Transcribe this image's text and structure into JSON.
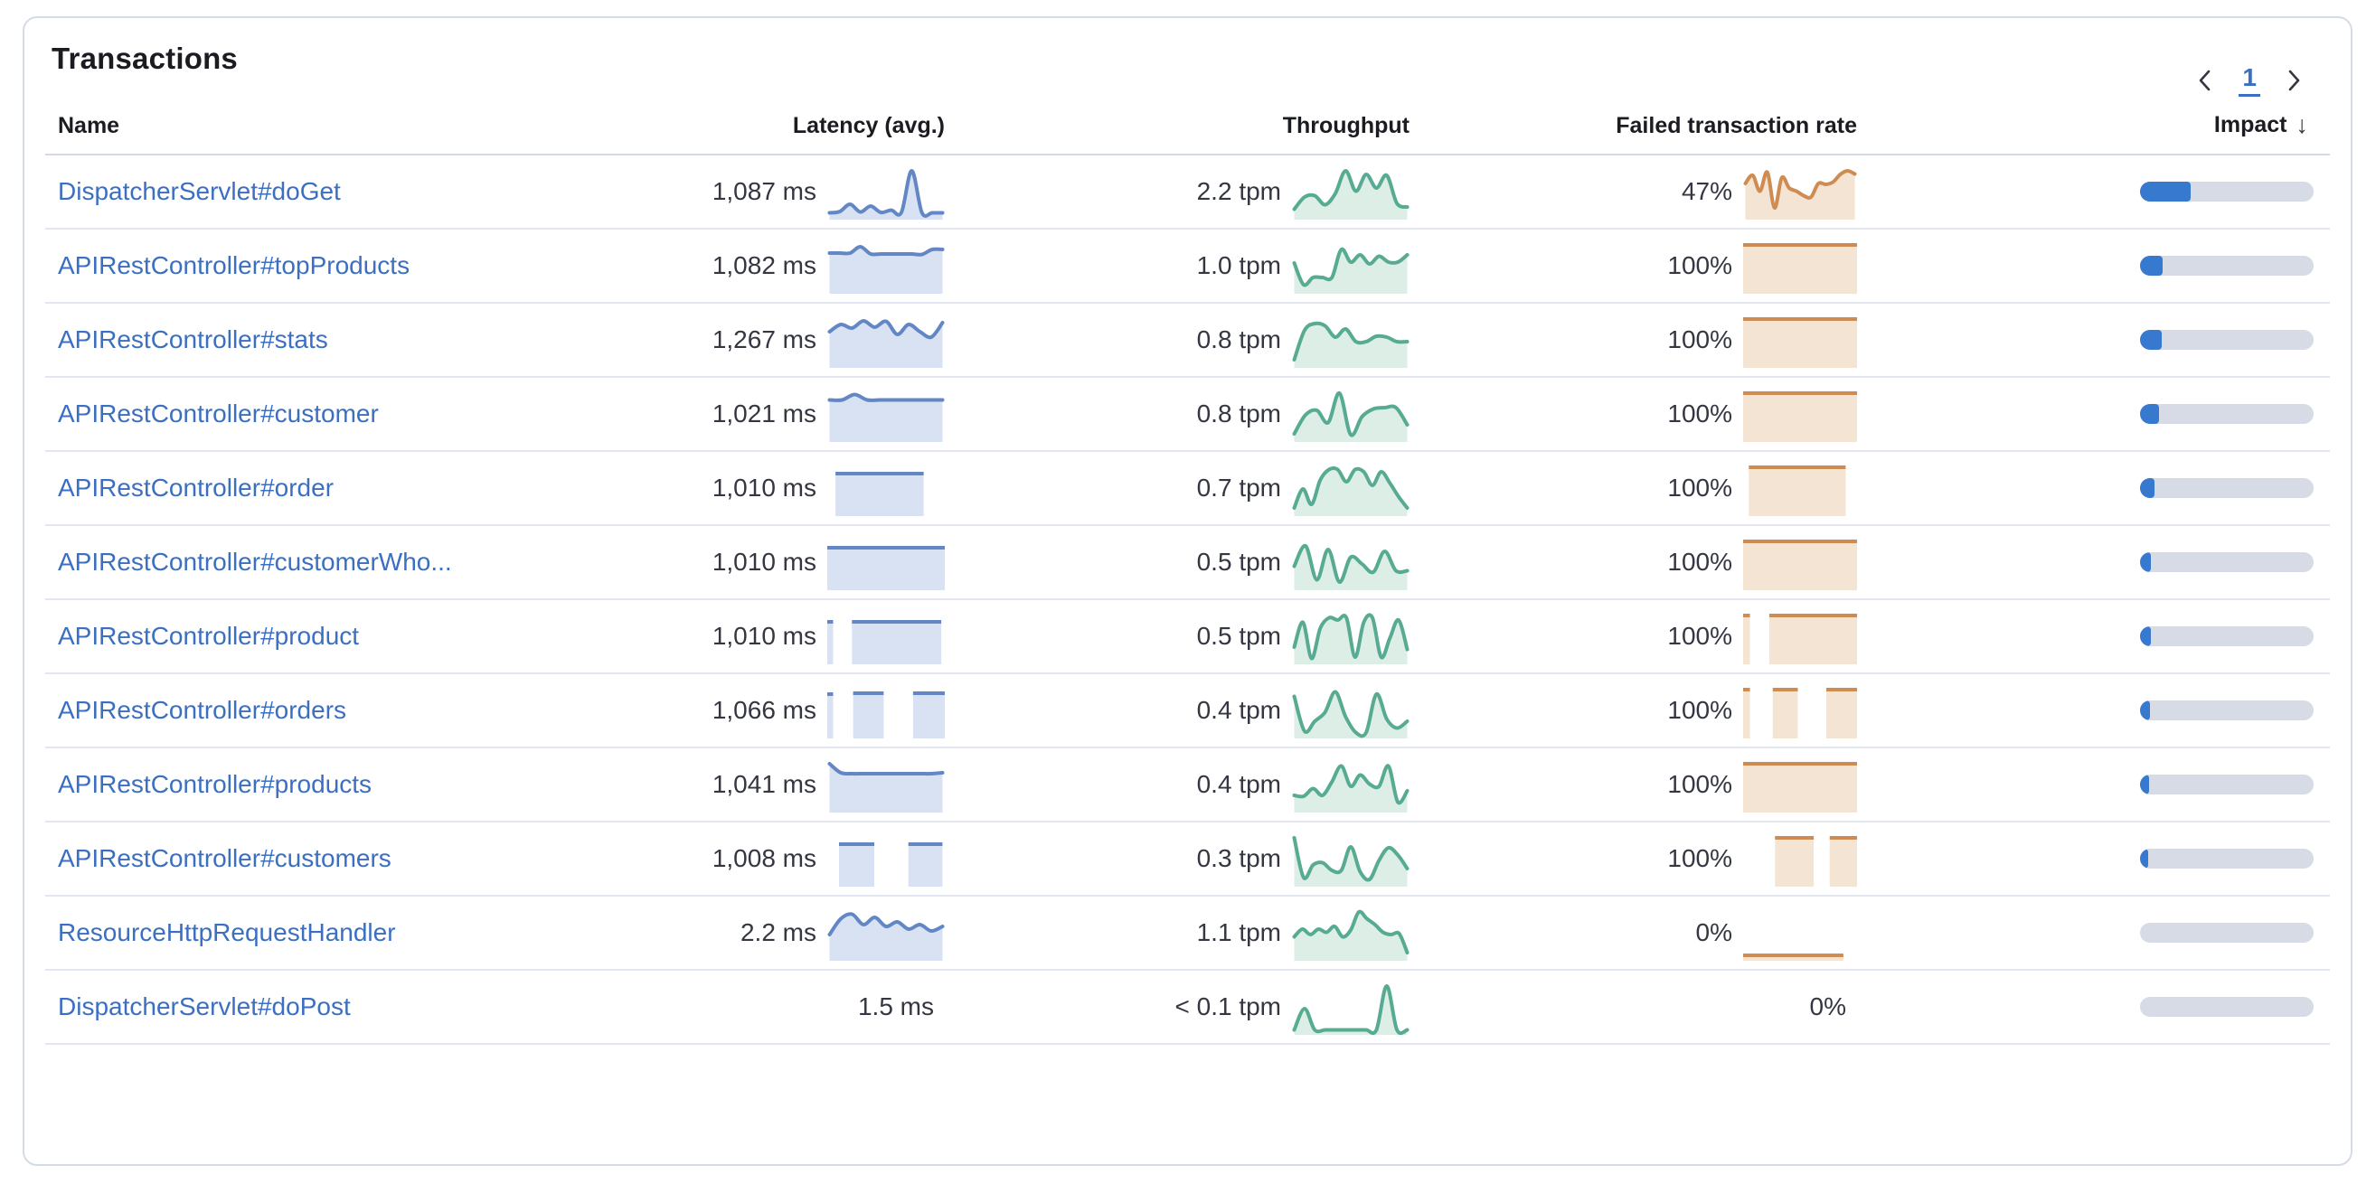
{
  "card": {
    "title": "Transactions"
  },
  "table": {
    "columns": [
      "Name",
      "Latency (avg.)",
      "Throughput",
      "Failed transaction rate",
      "Impact"
    ],
    "sort": {
      "column": "Impact",
      "direction": "desc",
      "indicator": "↓"
    }
  },
  "colors": {
    "latency_line": "#6287c4",
    "latency_fill": "#d9e2f2",
    "throughput_line": "#57ab92",
    "throughput_fill": "#dceee6",
    "failed_line": "#ce8c52",
    "failed_fill": "#f4e4d3",
    "impact_fill": "#3879d0",
    "impact_track": "#d6dbe5",
    "link": "#3b6fc1"
  },
  "rows": [
    {
      "name": "DispatcherServlet#doGet",
      "latency": "1,087 ms",
      "latency_spark": {
        "kind": "line",
        "points": [
          0.07,
          0.1,
          0.26,
          0.09,
          0.22,
          0.08,
          0.13,
          0.08,
          1.0,
          0.07,
          0.07,
          0.07
        ]
      },
      "throughput": "2.2 tpm",
      "throughput_spark": {
        "kind": "line",
        "points": [
          0.15,
          0.42,
          0.45,
          0.25,
          0.5,
          1.0,
          0.55,
          0.92,
          0.62,
          0.9,
          0.28,
          0.2
        ]
      },
      "failed": "47%",
      "failed_spark": {
        "kind": "line",
        "points": [
          0.72,
          0.9,
          0.55,
          0.97,
          0.18,
          0.85,
          0.62,
          0.55,
          0.45,
          0.42,
          0.72,
          0.7,
          0.75,
          0.92,
          1.0,
          0.93
        ]
      },
      "impact": 0.29
    },
    {
      "name": "APIRestController#topProducts",
      "latency": "1,082 ms",
      "latency_spark": {
        "kind": "line",
        "points": [
          0.82,
          0.82,
          0.82,
          0.96,
          0.8,
          0.8,
          0.8,
          0.8,
          0.8,
          0.79,
          0.9,
          0.9
        ]
      },
      "throughput": "1.0 tpm",
      "throughput_spark": {
        "kind": "line",
        "points": [
          0.6,
          0.12,
          0.28,
          0.28,
          0.28,
          0.9,
          0.62,
          0.78,
          0.58,
          0.75,
          0.62,
          0.62,
          0.78
        ]
      },
      "failed": "100%",
      "failed_spark": {
        "kind": "blocks",
        "segments": [
          [
            0,
            1,
            1
          ]
        ]
      },
      "impact": 0.13
    },
    {
      "name": "APIRestController#stats",
      "latency": "1,267 ms",
      "latency_spark": {
        "kind": "line",
        "points": [
          0.72,
          0.88,
          0.8,
          0.96,
          0.82,
          0.95,
          0.66,
          0.88,
          0.72,
          0.6,
          0.92
        ]
      },
      "throughput": "0.8 tpm",
      "throughput_spark": {
        "kind": "line",
        "points": [
          0.1,
          0.75,
          0.9,
          0.85,
          0.6,
          0.78,
          0.5,
          0.5,
          0.62,
          0.6,
          0.5,
          0.5
        ]
      },
      "failed": "100%",
      "failed_spark": {
        "kind": "blocks",
        "segments": [
          [
            0,
            1,
            1
          ]
        ]
      },
      "impact": 0.125
    },
    {
      "name": "APIRestController#customer",
      "latency": "1,021 ms",
      "latency_spark": {
        "kind": "line",
        "points": [
          0.85,
          0.85,
          0.97,
          0.85,
          0.85,
          0.85,
          0.85,
          0.85,
          0.85,
          0.85
        ]
      },
      "throughput": "0.8 tpm",
      "throughput_spark": {
        "kind": "line",
        "points": [
          0.1,
          0.52,
          0.62,
          0.35,
          1.0,
          0.08,
          0.48,
          0.65,
          0.68,
          0.68,
          0.3
        ]
      },
      "failed": "100%",
      "failed_spark": {
        "kind": "blocks",
        "segments": [
          [
            0,
            1,
            1
          ]
        ]
      },
      "impact": 0.11
    },
    {
      "name": "APIRestController#order",
      "latency": "1,010 ms",
      "latency_spark": {
        "kind": "blocks",
        "segments": [
          [
            0.07,
            0.82,
            0.86
          ]
        ]
      },
      "throughput": "0.7 tpm",
      "throughput_spark": {
        "kind": "line",
        "points": [
          0.1,
          0.52,
          0.18,
          0.72,
          0.95,
          0.95,
          0.68,
          0.95,
          0.9,
          0.6,
          0.9,
          0.65,
          0.35,
          0.1
        ]
      },
      "failed": "100%",
      "failed_spark": {
        "kind": "blocks",
        "segments": [
          [
            0.05,
            0.9,
            1
          ]
        ]
      },
      "impact": 0.085
    },
    {
      "name": "APIRestController#customerWho...",
      "latency": "1,010 ms",
      "latency_spark": {
        "kind": "blocks",
        "segments": [
          [
            0,
            1,
            0.86
          ]
        ]
      },
      "throughput": "0.5 tpm",
      "throughput_spark": {
        "kind": "line",
        "points": [
          0.45,
          0.9,
          0.15,
          0.82,
          0.1,
          0.65,
          0.5,
          0.32,
          0.78,
          0.35,
          0.35
        ]
      },
      "failed": "100%",
      "failed_spark": {
        "kind": "blocks",
        "segments": [
          [
            0,
            1,
            1
          ]
        ]
      },
      "impact": 0.065
    },
    {
      "name": "APIRestController#product",
      "latency": "1,010 ms",
      "latency_spark": {
        "kind": "blocks",
        "segments": [
          [
            0,
            0.05,
            0.86
          ],
          [
            0.21,
            0.97,
            0.86
          ]
        ]
      },
      "throughput": "0.5 tpm",
      "throughput_spark": {
        "kind": "line",
        "points": [
          0.3,
          0.85,
          0.05,
          0.72,
          0.95,
          0.9,
          0.95,
          0.08,
          0.85,
          0.95,
          0.08,
          0.5,
          0.9,
          0.25
        ]
      },
      "failed": "100%",
      "failed_spark": {
        "kind": "blocks",
        "segments": [
          [
            0,
            0.06,
            1
          ],
          [
            0.23,
            1,
            1
          ]
        ]
      },
      "impact": 0.06
    },
    {
      "name": "APIRestController#orders",
      "latency": "1,066 ms",
      "latency_spark": {
        "kind": "blocks",
        "segments": [
          [
            0,
            0.05,
            0.9
          ],
          [
            0.22,
            0.48,
            0.92
          ],
          [
            0.73,
            1,
            0.92
          ]
        ]
      },
      "throughput": "0.4 tpm",
      "throughput_spark": {
        "kind": "line",
        "points": [
          0.85,
          0.08,
          0.3,
          0.5,
          0.95,
          0.4,
          0.05,
          0.05,
          0.9,
          0.35,
          0.15,
          0.3
        ]
      },
      "failed": "100%",
      "failed_spark": {
        "kind": "blocks",
        "segments": [
          [
            0,
            0.06,
            1
          ],
          [
            0.26,
            0.48,
            1
          ],
          [
            0.73,
            1,
            1
          ]
        ]
      },
      "impact": 0.055
    },
    {
      "name": "APIRestController#products",
      "latency": "1,041 ms",
      "latency_spark": {
        "kind": "line",
        "points": [
          1.0,
          0.8,
          0.78,
          0.78,
          0.78,
          0.78,
          0.78,
          0.78,
          0.78,
          0.78,
          0.8
        ]
      },
      "throughput": "0.4 tpm",
      "throughput_spark": {
        "kind": "line",
        "points": [
          0.3,
          0.28,
          0.45,
          0.3,
          0.6,
          0.95,
          0.5,
          0.75,
          0.55,
          0.5,
          0.95,
          0.15,
          0.4
        ]
      },
      "failed": "100%",
      "failed_spark": {
        "kind": "blocks",
        "segments": [
          [
            0,
            1,
            1
          ]
        ]
      },
      "impact": 0.05
    },
    {
      "name": "APIRestController#customers",
      "latency": "1,008 ms",
      "latency_spark": {
        "kind": "blocks",
        "segments": [
          [
            0.1,
            0.4,
            0.86
          ],
          [
            0.69,
            0.98,
            0.86
          ]
        ]
      },
      "throughput": "0.3 tpm",
      "throughput_spark": {
        "kind": "line",
        "points": [
          1.0,
          0.12,
          0.4,
          0.45,
          0.28,
          0.28,
          0.8,
          0.25,
          0.08,
          0.5,
          0.78,
          0.62,
          0.32
        ]
      },
      "failed": "100%",
      "failed_spark": {
        "kind": "blocks",
        "segments": [
          [
            0.28,
            0.62,
            1
          ],
          [
            0.76,
            1,
            1
          ]
        ]
      },
      "impact": 0.048
    },
    {
      "name": "ResourceHttpRequestHandler",
      "latency": "2.2 ms",
      "latency_spark": {
        "kind": "line",
        "points": [
          0.5,
          0.85,
          0.95,
          0.72,
          0.88,
          0.68,
          0.78,
          0.62,
          0.72,
          0.58,
          0.68
        ]
      },
      "throughput": "1.1 tpm",
      "throughput_spark": {
        "kind": "line",
        "points": [
          0.45,
          0.62,
          0.5,
          0.62,
          0.55,
          0.68,
          0.45,
          0.6,
          1.0,
          0.85,
          0.72,
          0.55,
          0.5,
          0.52,
          0.1
        ]
      },
      "failed": "0%",
      "failed_spark": {
        "kind": "blocks",
        "segments": [
          [
            0,
            0.88,
            0.04
          ]
        ]
      },
      "impact": 0
    },
    {
      "name": "DispatcherServlet#doPost",
      "latency": "1.5 ms",
      "latency_spark": null,
      "throughput": "< 0.1 tpm",
      "throughput_spark": {
        "kind": "line",
        "points": [
          0.03,
          0.5,
          0.03,
          0.03,
          0.03,
          0.03,
          0.03,
          0.03,
          0.03,
          1.0,
          0.03,
          0.03
        ]
      },
      "failed": "0%",
      "failed_spark": null,
      "impact": 0
    }
  ],
  "pagination": {
    "current_page": "1",
    "prev": "previous-page",
    "next": "next-page"
  }
}
